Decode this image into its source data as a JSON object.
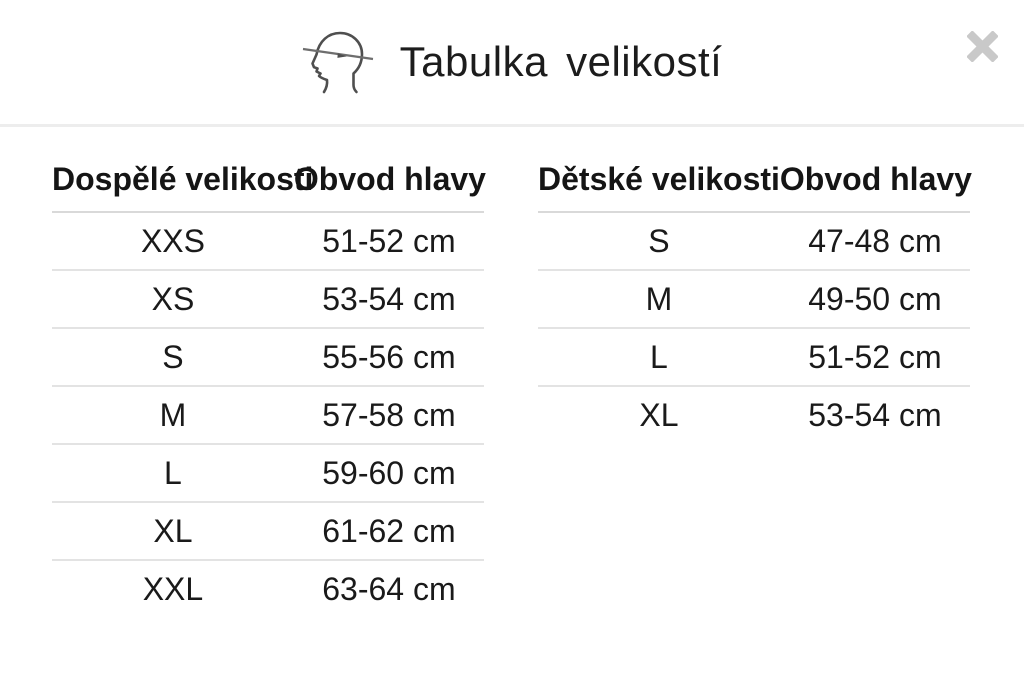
{
  "modal": {
    "title": "Tabulka velikostí"
  },
  "icons": {
    "header_icon": "head-circumference-measurement-icon",
    "close_icon": "close-icon"
  },
  "tables": [
    {
      "id": "adult-sizes",
      "columns": [
        "Dospělé velikosti",
        "Obvod hlavy"
      ],
      "rows": [
        [
          "XXS",
          "51-52 cm"
        ],
        [
          "XS",
          "53-54 cm"
        ],
        [
          "S",
          "55-56 cm"
        ],
        [
          "M",
          "57-58 cm"
        ],
        [
          "L",
          "59-60 cm"
        ],
        [
          "XL",
          "61-62 cm"
        ],
        [
          "XXL",
          "63-64 cm"
        ]
      ]
    },
    {
      "id": "children-sizes",
      "columns": [
        "Dětské velikosti",
        "Obvod hlavy"
      ],
      "rows": [
        [
          "S",
          "47-48 cm"
        ],
        [
          "M",
          "49-50 cm"
        ],
        [
          "L",
          "51-52 cm"
        ],
        [
          "XL",
          "53-54 cm"
        ]
      ]
    }
  ],
  "colors": {
    "text": "#1c1c1c",
    "header_divider": "#ededed",
    "row_divider": "#e3e3e3",
    "header_row_divider": "#d9d9d9",
    "close_icon": "#c9c9c9",
    "icon_stroke": "#4f4f4f"
  }
}
